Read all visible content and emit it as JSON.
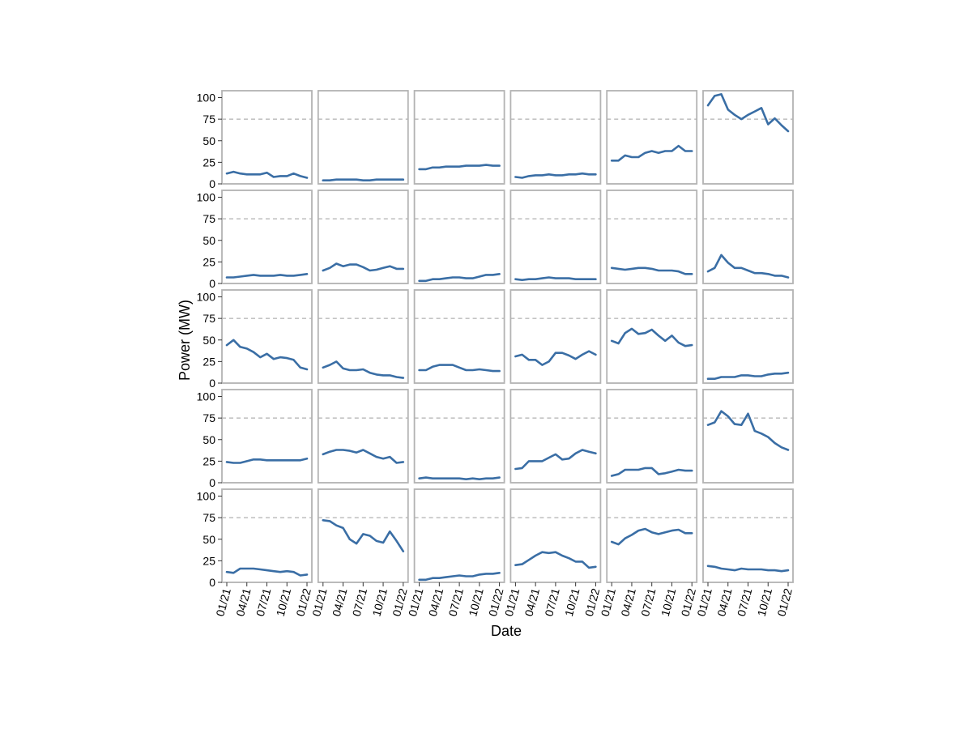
{
  "chart_data": {
    "type": "line",
    "layout": "small-multiples",
    "grid_rows": 5,
    "grid_cols": 6,
    "xlabel": "Date",
    "ylabel": "Power (MW)",
    "ylim": [
      0,
      108
    ],
    "yticks": [
      0,
      25,
      50,
      75,
      100
    ],
    "x": [
      "2021-01",
      "2021-02",
      "2021-03",
      "2021-04",
      "2021-05",
      "2021-06",
      "2021-07",
      "2021-08",
      "2021-09",
      "2021-10",
      "2021-11",
      "2021-12",
      "2022-01"
    ],
    "xticks": [
      "01/21",
      "04/21",
      "07/21",
      "10/21",
      "01/22"
    ],
    "xtick_index": [
      0,
      3,
      6,
      9,
      12
    ],
    "reference_line": 75,
    "line_color": "#3a6ea5",
    "reference_color": "#b0b0b0",
    "frame_color": "#b3b3b3",
    "panels": [
      {
        "values": [
          12,
          14,
          12,
          11,
          11,
          11,
          13,
          8,
          9,
          9,
          12,
          9,
          7
        ]
      },
      {
        "values": [
          4,
          4,
          5,
          5,
          5,
          5,
          4,
          4,
          5,
          5,
          5,
          5,
          5
        ]
      },
      {
        "values": [
          17,
          17,
          19,
          19,
          20,
          20,
          20,
          21,
          21,
          21,
          22,
          21,
          21
        ]
      },
      {
        "values": [
          8,
          7,
          9,
          10,
          10,
          11,
          10,
          10,
          11,
          11,
          12,
          11,
          11
        ]
      },
      {
        "values": [
          27,
          27,
          33,
          31,
          31,
          36,
          38,
          36,
          38,
          38,
          44,
          38,
          38
        ]
      },
      {
        "values": [
          91,
          102,
          104,
          86,
          80,
          75,
          80,
          84,
          88,
          69,
          76,
          68,
          61
        ]
      },
      {
        "values": [
          7,
          7,
          8,
          9,
          10,
          9,
          9,
          9,
          10,
          9,
          9,
          10,
          11
        ]
      },
      {
        "values": [
          15,
          18,
          23,
          20,
          22,
          22,
          19,
          15,
          16,
          18,
          20,
          17,
          17
        ]
      },
      {
        "values": [
          3,
          3,
          5,
          5,
          6,
          7,
          7,
          6,
          6,
          8,
          10,
          10,
          11
        ]
      },
      {
        "values": [
          5,
          4,
          5,
          5,
          6,
          7,
          6,
          6,
          6,
          5,
          5,
          5,
          5
        ]
      },
      {
        "values": [
          18,
          17,
          16,
          17,
          18,
          18,
          17,
          15,
          15,
          15,
          14,
          11,
          11
        ]
      },
      {
        "values": [
          14,
          18,
          33,
          24,
          18,
          18,
          15,
          12,
          12,
          11,
          9,
          9,
          7
        ]
      },
      {
        "values": [
          44,
          50,
          42,
          40,
          36,
          30,
          34,
          28,
          30,
          29,
          27,
          18,
          16
        ]
      },
      {
        "values": [
          18,
          21,
          25,
          17,
          15,
          15,
          16,
          12,
          10,
          9,
          9,
          7,
          6
        ]
      },
      {
        "values": [
          15,
          15,
          19,
          21,
          21,
          21,
          18,
          15,
          15,
          16,
          15,
          14,
          14
        ]
      },
      {
        "values": [
          31,
          33,
          27,
          27,
          21,
          25,
          35,
          35,
          32,
          28,
          33,
          37,
          33
        ]
      },
      {
        "values": [
          49,
          46,
          58,
          63,
          57,
          58,
          62,
          55,
          49,
          55,
          47,
          43,
          44
        ]
      },
      {
        "values": [
          5,
          5,
          7,
          7,
          7,
          9,
          9,
          8,
          8,
          10,
          11,
          11,
          12
        ]
      },
      {
        "values": [
          24,
          23,
          23,
          25,
          27,
          27,
          26,
          26,
          26,
          26,
          26,
          26,
          28
        ]
      },
      {
        "values": [
          33,
          36,
          38,
          38,
          37,
          35,
          38,
          34,
          30,
          28,
          30,
          23,
          24
        ]
      },
      {
        "values": [
          5,
          6,
          5,
          5,
          5,
          5,
          5,
          4,
          5,
          4,
          5,
          5,
          6
        ]
      },
      {
        "values": [
          16,
          17,
          25,
          25,
          25,
          29,
          33,
          27,
          28,
          34,
          38,
          36,
          34
        ]
      },
      {
        "values": [
          8,
          10,
          15,
          15,
          15,
          17,
          17,
          10,
          11,
          13,
          15,
          14,
          14
        ]
      },
      {
        "values": [
          67,
          70,
          83,
          77,
          68,
          67,
          80,
          60,
          57,
          53,
          46,
          41,
          38
        ]
      },
      {
        "values": [
          12,
          11,
          16,
          16,
          16,
          15,
          14,
          13,
          12,
          13,
          12,
          8,
          9
        ]
      },
      {
        "values": [
          72,
          71,
          66,
          63,
          50,
          45,
          56,
          54,
          48,
          46,
          59,
          48,
          36
        ]
      },
      {
        "values": [
          3,
          3,
          5,
          5,
          6,
          7,
          8,
          7,
          7,
          9,
          10,
          10,
          11
        ]
      },
      {
        "values": [
          20,
          21,
          26,
          31,
          35,
          34,
          35,
          31,
          28,
          24,
          24,
          17,
          18
        ]
      },
      {
        "values": [
          47,
          44,
          51,
          55,
          60,
          62,
          58,
          56,
          58,
          60,
          61,
          57,
          57
        ]
      },
      {
        "values": [
          19,
          18,
          16,
          15,
          14,
          16,
          15,
          15,
          15,
          14,
          14,
          13,
          14
        ]
      }
    ]
  }
}
